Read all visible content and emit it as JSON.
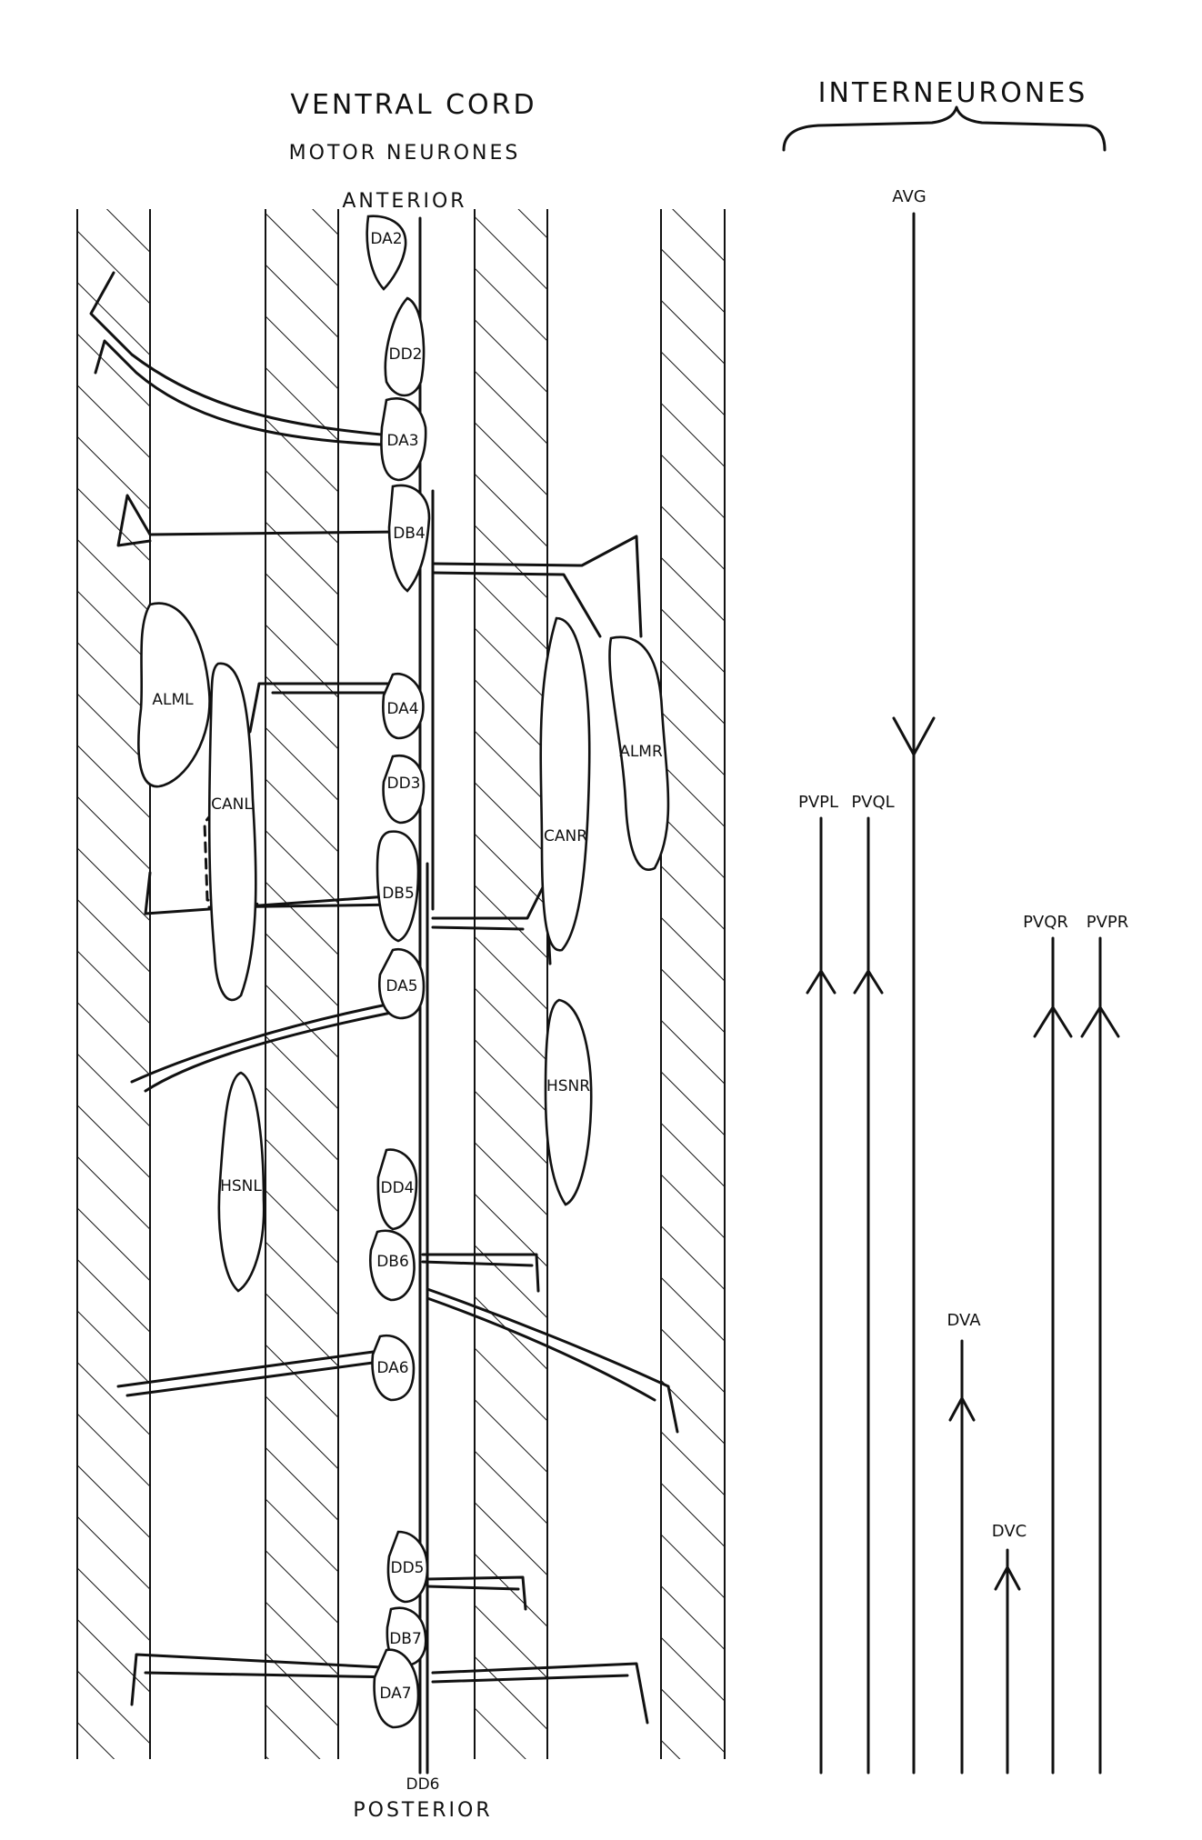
{
  "header": {
    "title": "VENTRAL CORD",
    "subtitle": "MOTOR NEURONES",
    "interneurones": "INTERNEURONES"
  },
  "orientation": {
    "anterior": "ANTERIOR",
    "posterior": "POSTERIOR"
  },
  "motor_neurones": [
    {
      "id": "da2",
      "label": "DA2"
    },
    {
      "id": "dd2",
      "label": "DD2"
    },
    {
      "id": "da3",
      "label": "DA3"
    },
    {
      "id": "db4",
      "label": "DB4"
    },
    {
      "id": "da4",
      "label": "DA4"
    },
    {
      "id": "dd3",
      "label": "DD3"
    },
    {
      "id": "db5",
      "label": "DB5"
    },
    {
      "id": "da5",
      "label": "DA5"
    },
    {
      "id": "dd4",
      "label": "DD4"
    },
    {
      "id": "db6",
      "label": "DB6"
    },
    {
      "id": "da6",
      "label": "DA6"
    },
    {
      "id": "dd5",
      "label": "DD5"
    },
    {
      "id": "db7",
      "label": "DB7"
    },
    {
      "id": "da7",
      "label": "DA7"
    },
    {
      "id": "dd6",
      "label": "DD6"
    }
  ],
  "other_cells": [
    {
      "id": "alml",
      "label": "ALML"
    },
    {
      "id": "canl",
      "label": "CANL"
    },
    {
      "id": "hsnl",
      "label": "HSNL"
    },
    {
      "id": "canr",
      "label": "CANR"
    },
    {
      "id": "almr",
      "label": "ALMR"
    },
    {
      "id": "hsnr",
      "label": "HSNR"
    }
  ],
  "interneurones": [
    {
      "id": "avg",
      "label": "AVG",
      "direction": "posterior"
    },
    {
      "id": "pvpl",
      "label": "PVPL",
      "direction": "anterior"
    },
    {
      "id": "pvql",
      "label": "PVQL",
      "direction": "anterior"
    },
    {
      "id": "pvqr",
      "label": "PVQR",
      "direction": "anterior"
    },
    {
      "id": "pvpr",
      "label": "PVPR",
      "direction": "anterior"
    },
    {
      "id": "dva",
      "label": "DVA",
      "direction": "anterior"
    },
    {
      "id": "dvc",
      "label": "DVC",
      "direction": "anterior"
    }
  ]
}
